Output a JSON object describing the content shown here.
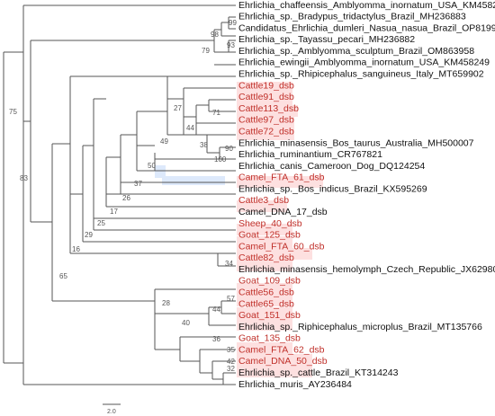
{
  "tree": {
    "colors": {
      "reference": "#111111",
      "study": "#c0302a",
      "highlight": "#fde0e0",
      "highlight_alt": "#dde9fb",
      "branch": "#555555"
    },
    "leaves": [
      {
        "label": "Ehrlichia_chaffeensis_Amblyomma_inornatum_USA_KM458246",
        "group": "reference"
      },
      {
        "label": "Ehrlichia_sp._Bradypus_tridactylus_Brazil_MH236883",
        "group": "reference"
      },
      {
        "label": "Candidatus_Ehrlichia_dumleri_Nasua_nasua_Brazil_OP819945",
        "group": "reference"
      },
      {
        "label": "Ehrlichia_sp._Tayassu_pecari_MH236882",
        "group": "reference"
      },
      {
        "label": "Ehrlichia_sp._Amblyomma_sculptum_Brazil_OM863958",
        "group": "reference"
      },
      {
        "label": "Ehrlichia_ewingii_Amblyomma_inornatum_USA_KM458249",
        "group": "reference"
      },
      {
        "label": "Ehrlichia_sp._Rhipicephalus_sanguineus_Italy_MT659902",
        "group": "reference"
      },
      {
        "label": "Cattle19_dsb",
        "group": "study"
      },
      {
        "label": "Cattle91_dsb",
        "group": "study"
      },
      {
        "label": "Cattle113_dsb",
        "group": "study"
      },
      {
        "label": "Cattle97_dsb",
        "group": "study"
      },
      {
        "label": "Cattle72_dsb",
        "group": "study"
      },
      {
        "label": "Ehrlichia_minasensis_Bos_taurus_Australia_MH500007",
        "group": "reference"
      },
      {
        "label": "Ehrlichia_ruminantium_CR767821",
        "group": "reference"
      },
      {
        "label": "Ehrlichia_canis_Cameroon_Dog_DQ124254",
        "group": "reference"
      },
      {
        "label": "Camel_FTA_61_dsb",
        "group": "study"
      },
      {
        "label": "Ehrlichia_sp._Bos_indicus_Brazil_KX595269",
        "group": "reference"
      },
      {
        "label": "Cattle3_dsb",
        "group": "study"
      },
      {
        "label": "Camel_DNA_17_dsb",
        "group": "reference"
      },
      {
        "label": "Sheep_40_dsb",
        "group": "study"
      },
      {
        "label": "Goat_125_dsb",
        "group": "study"
      },
      {
        "label": "Camel_FTA_60_dsb",
        "group": "study"
      },
      {
        "label": "Cattle82_dsb",
        "group": "study"
      },
      {
        "label": "Ehrlichia_minasensis_hemolymph_Czech_Republic_JX629808",
        "group": "reference"
      },
      {
        "label": "Goat_109_dsb",
        "group": "study"
      },
      {
        "label": "Cattle56_dsb",
        "group": "study"
      },
      {
        "label": "Cattle65_dsb",
        "group": "study"
      },
      {
        "label": "Goat_151_dsb",
        "group": "study"
      },
      {
        "label": "Ehrlichia_sp._Riphicephalus_microplus_Brazil_MT135766",
        "group": "reference"
      },
      {
        "label": "Goat_135_dsb",
        "group": "study"
      },
      {
        "label": "Camel_FTA_62_dsb",
        "group": "study"
      },
      {
        "label": "Camel_DNA_50_dsb",
        "group": "study"
      },
      {
        "label": "Ehrlichia_sp._cattle_Brazil_KT314243",
        "group": "reference"
      },
      {
        "label": "Ehrlichia_muris_AY236484",
        "group": "reference"
      }
    ],
    "support_values": [
      "99",
      "98",
      "93",
      "79",
      "75",
      "27",
      "71",
      "44",
      "49",
      "38",
      "90",
      "100",
      "50",
      "37",
      "26",
      "17",
      "25",
      "29",
      "16",
      "34",
      "83",
      "28",
      "57",
      "44",
      "40",
      "36",
      "35",
      "42",
      "32",
      "65"
    ],
    "scale_label": "2.0"
  }
}
